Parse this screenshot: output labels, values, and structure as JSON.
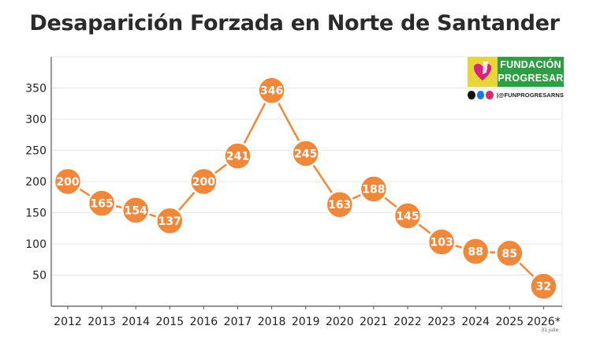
{
  "chart_data": {
    "type": "line",
    "title": "Desaparición Forzada en Norte de Santander",
    "xlabel": "",
    "ylabel": "",
    "categories": [
      "2012",
      "2013",
      "2014",
      "2015",
      "2016",
      "2017",
      "2018",
      "2019",
      "2020",
      "2021",
      "2022",
      "2023",
      "2024",
      "2025",
      "2026*"
    ],
    "values": [
      200,
      165,
      154,
      137,
      200,
      241,
      346,
      245,
      163,
      188,
      145,
      103,
      88,
      85,
      32
    ],
    "value_labels": [
      "200",
      "165",
      "154",
      "137",
      "200",
      "241",
      "346",
      "245",
      "163",
      "188",
      "145",
      "103",
      "88",
      "85",
      "32"
    ],
    "last_category_note": "31 julio",
    "yticks": [
      50,
      100,
      150,
      200,
      250,
      300,
      350
    ],
    "ytick_labels": [
      "50",
      "100",
      "150",
      "200",
      "250",
      "300",
      "350"
    ],
    "ylim": [
      0,
      400
    ],
    "grid": true,
    "colors": {
      "line": "#f0883c",
      "marker": "#f0883c",
      "marker_stroke": "#ffffff",
      "grid": "#e5e5e5"
    }
  },
  "logo": {
    "line1": "FUNDACIÓN",
    "line2": "PROGRESAR",
    "handle": "|@FUNPROGRESARNS",
    "icons": [
      "x-icon",
      "facebook-icon",
      "instagram-icon"
    ],
    "colors": {
      "green": "#2e9e45",
      "yellow": "#e8d53a",
      "heart": "#d8247a"
    }
  }
}
